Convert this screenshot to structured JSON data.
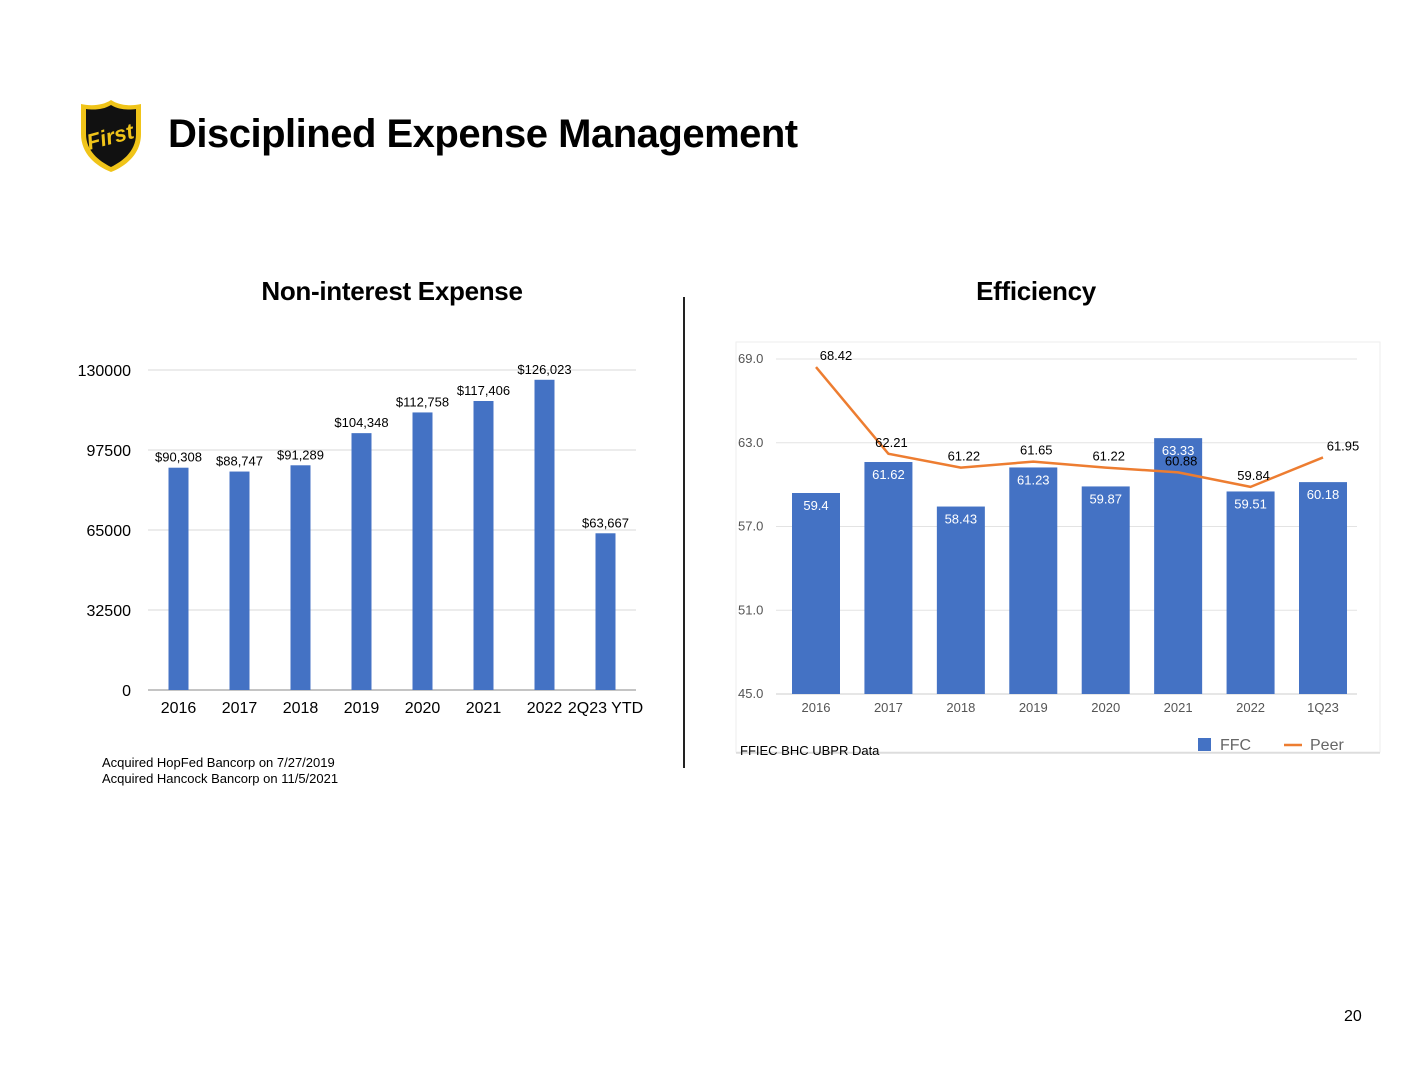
{
  "header": {
    "title": "Disciplined Expense Management",
    "logo_text": "First"
  },
  "footnotes": [
    "Acquired HopFed Bancorp on 7/27/2019",
    "Acquired Hancock Bancorp on 11/5/2021"
  ],
  "page_number": "20",
  "colors": {
    "bar": "#4472c4",
    "line": "#ed7d31",
    "grid": "#d9d9d9",
    "logo_gold": "#f0c419"
  },
  "chart_data": [
    {
      "type": "bar",
      "title": "Non-interest Expense",
      "categories": [
        "2016",
        "2017",
        "2018",
        "2019",
        "2020",
        "2021",
        "2022",
        "2Q23 YTD"
      ],
      "values": [
        90308,
        88747,
        91289,
        104348,
        112758,
        117406,
        126023,
        63667
      ],
      "data_labels": [
        "$90,308",
        "$88,747",
        "$91,289",
        "$104,348",
        "$112,758",
        "$117,406",
        "$126,023",
        "$63,667"
      ],
      "yticks": [
        "0",
        "32500",
        "65000",
        "97500",
        "130000"
      ],
      "ylim": [
        0,
        130000
      ],
      "xlabel": "",
      "ylabel": "",
      "grid": true
    },
    {
      "type": "bar+line",
      "title": "Efficiency",
      "categories": [
        "2016",
        "2017",
        "2018",
        "2019",
        "2020",
        "2021",
        "2022",
        "1Q23"
      ],
      "series": [
        {
          "name": "FFC",
          "type": "bar",
          "values": [
            59.4,
            61.62,
            58.43,
            61.23,
            59.87,
            63.33,
            59.51,
            60.18
          ],
          "labels": [
            "59.4",
            "61.62",
            "58.43",
            "61.23",
            "59.87",
            "63.33",
            "59.51",
            "60.18"
          ]
        },
        {
          "name": "Peer",
          "type": "line",
          "values": [
            68.42,
            62.21,
            61.22,
            61.65,
            61.22,
            60.88,
            59.84,
            61.95
          ],
          "labels": [
            "68.42",
            "62.21",
            "61.22",
            "61.65",
            "61.22",
            "60.88",
            "59.84",
            "61.95"
          ]
        }
      ],
      "yticks": [
        "45.0",
        "51.0",
        "57.0",
        "63.0",
        "69.0"
      ],
      "ylim": [
        45,
        69
      ],
      "source": "FFIEC BHC UBPR Data",
      "legend": "bottom-right",
      "grid": true
    }
  ]
}
